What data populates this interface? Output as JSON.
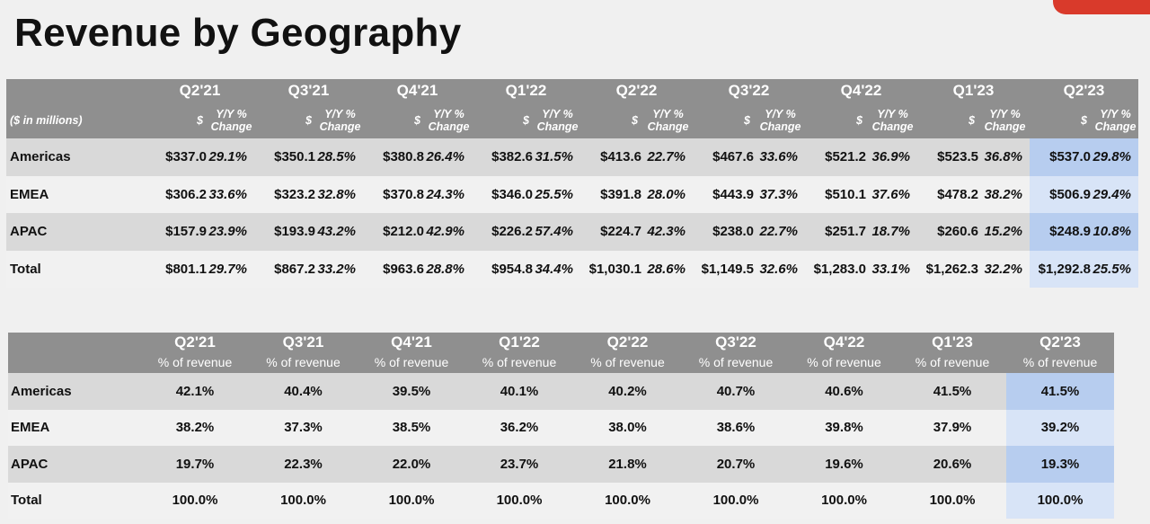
{
  "title": "Revenue by Geography",
  "table1": {
    "units_label": "($ in millions)",
    "currency_symbol": "$",
    "yoy_label_line1": "Y/Y %",
    "yoy_label_line2": "Change",
    "quarters": [
      "Q2'21",
      "Q3'21",
      "Q4'21",
      "Q1'22",
      "Q2'22",
      "Q3'22",
      "Q4'22",
      "Q1'23",
      "Q2'23"
    ],
    "rows": [
      {
        "label": "Americas",
        "values": [
          "$337.0",
          "29.1%",
          "$350.1",
          "28.5%",
          "$380.8",
          "26.4%",
          "$382.6",
          "31.5%",
          "$413.6",
          "22.7%",
          "$467.6",
          "33.6%",
          "$521.2",
          "36.9%",
          "$523.5",
          "36.8%",
          "$537.0",
          "29.8%"
        ]
      },
      {
        "label": "EMEA",
        "values": [
          "$306.2",
          "33.6%",
          "$323.2",
          "32.8%",
          "$370.8",
          "24.3%",
          "$346.0",
          "25.5%",
          "$391.8",
          "28.0%",
          "$443.9",
          "37.3%",
          "$510.1",
          "37.6%",
          "$478.2",
          "38.2%",
          "$506.9",
          "29.4%"
        ]
      },
      {
        "label": "APAC",
        "values": [
          "$157.9",
          "23.9%",
          "$193.9",
          "43.2%",
          "$212.0",
          "42.9%",
          "$226.2",
          "57.4%",
          "$224.7",
          "42.3%",
          "$238.0",
          "22.7%",
          "$251.7",
          "18.7%",
          "$260.6",
          "15.2%",
          "$248.9",
          "10.8%"
        ]
      },
      {
        "label": "Total",
        "values": [
          "$801.1",
          "29.7%",
          "$867.2",
          "33.2%",
          "$963.6",
          "28.8%",
          "$954.8",
          "34.4%",
          "$1,030.1",
          "28.6%",
          "$1,149.5",
          "32.6%",
          "$1,283.0",
          "33.1%",
          "$1,262.3",
          "32.2%",
          "$1,292.8",
          "25.5%"
        ]
      }
    ]
  },
  "table2": {
    "sub_label": "% of revenue",
    "quarters": [
      "Q2'21",
      "Q3'21",
      "Q4'21",
      "Q1'22",
      "Q2'22",
      "Q3'22",
      "Q4'22",
      "Q1'23",
      "Q2'23"
    ],
    "rows": [
      {
        "label": "Americas",
        "values": [
          "42.1%",
          "40.4%",
          "39.5%",
          "40.1%",
          "40.2%",
          "40.7%",
          "40.6%",
          "41.5%",
          "41.5%"
        ]
      },
      {
        "label": "EMEA",
        "values": [
          "38.2%",
          "37.3%",
          "38.5%",
          "36.2%",
          "38.0%",
          "38.6%",
          "39.8%",
          "37.9%",
          "39.2%"
        ]
      },
      {
        "label": "APAC",
        "values": [
          "19.7%",
          "22.3%",
          "22.0%",
          "23.7%",
          "21.8%",
          "20.7%",
          "19.6%",
          "20.6%",
          "19.3%"
        ]
      },
      {
        "label": "Total",
        "values": [
          "100.0%",
          "100.0%",
          "100.0%",
          "100.0%",
          "100.0%",
          "100.0%",
          "100.0%",
          "100.0%",
          "100.0%"
        ]
      }
    ]
  },
  "colors": {
    "header_bg": "#8f8f8f",
    "row_dark": "#d9d9d9",
    "row_light": "#f1f1f1",
    "highlight_dark": "#b7cdef",
    "highlight_light": "#d8e4f7",
    "accent": "#d93a2b"
  }
}
